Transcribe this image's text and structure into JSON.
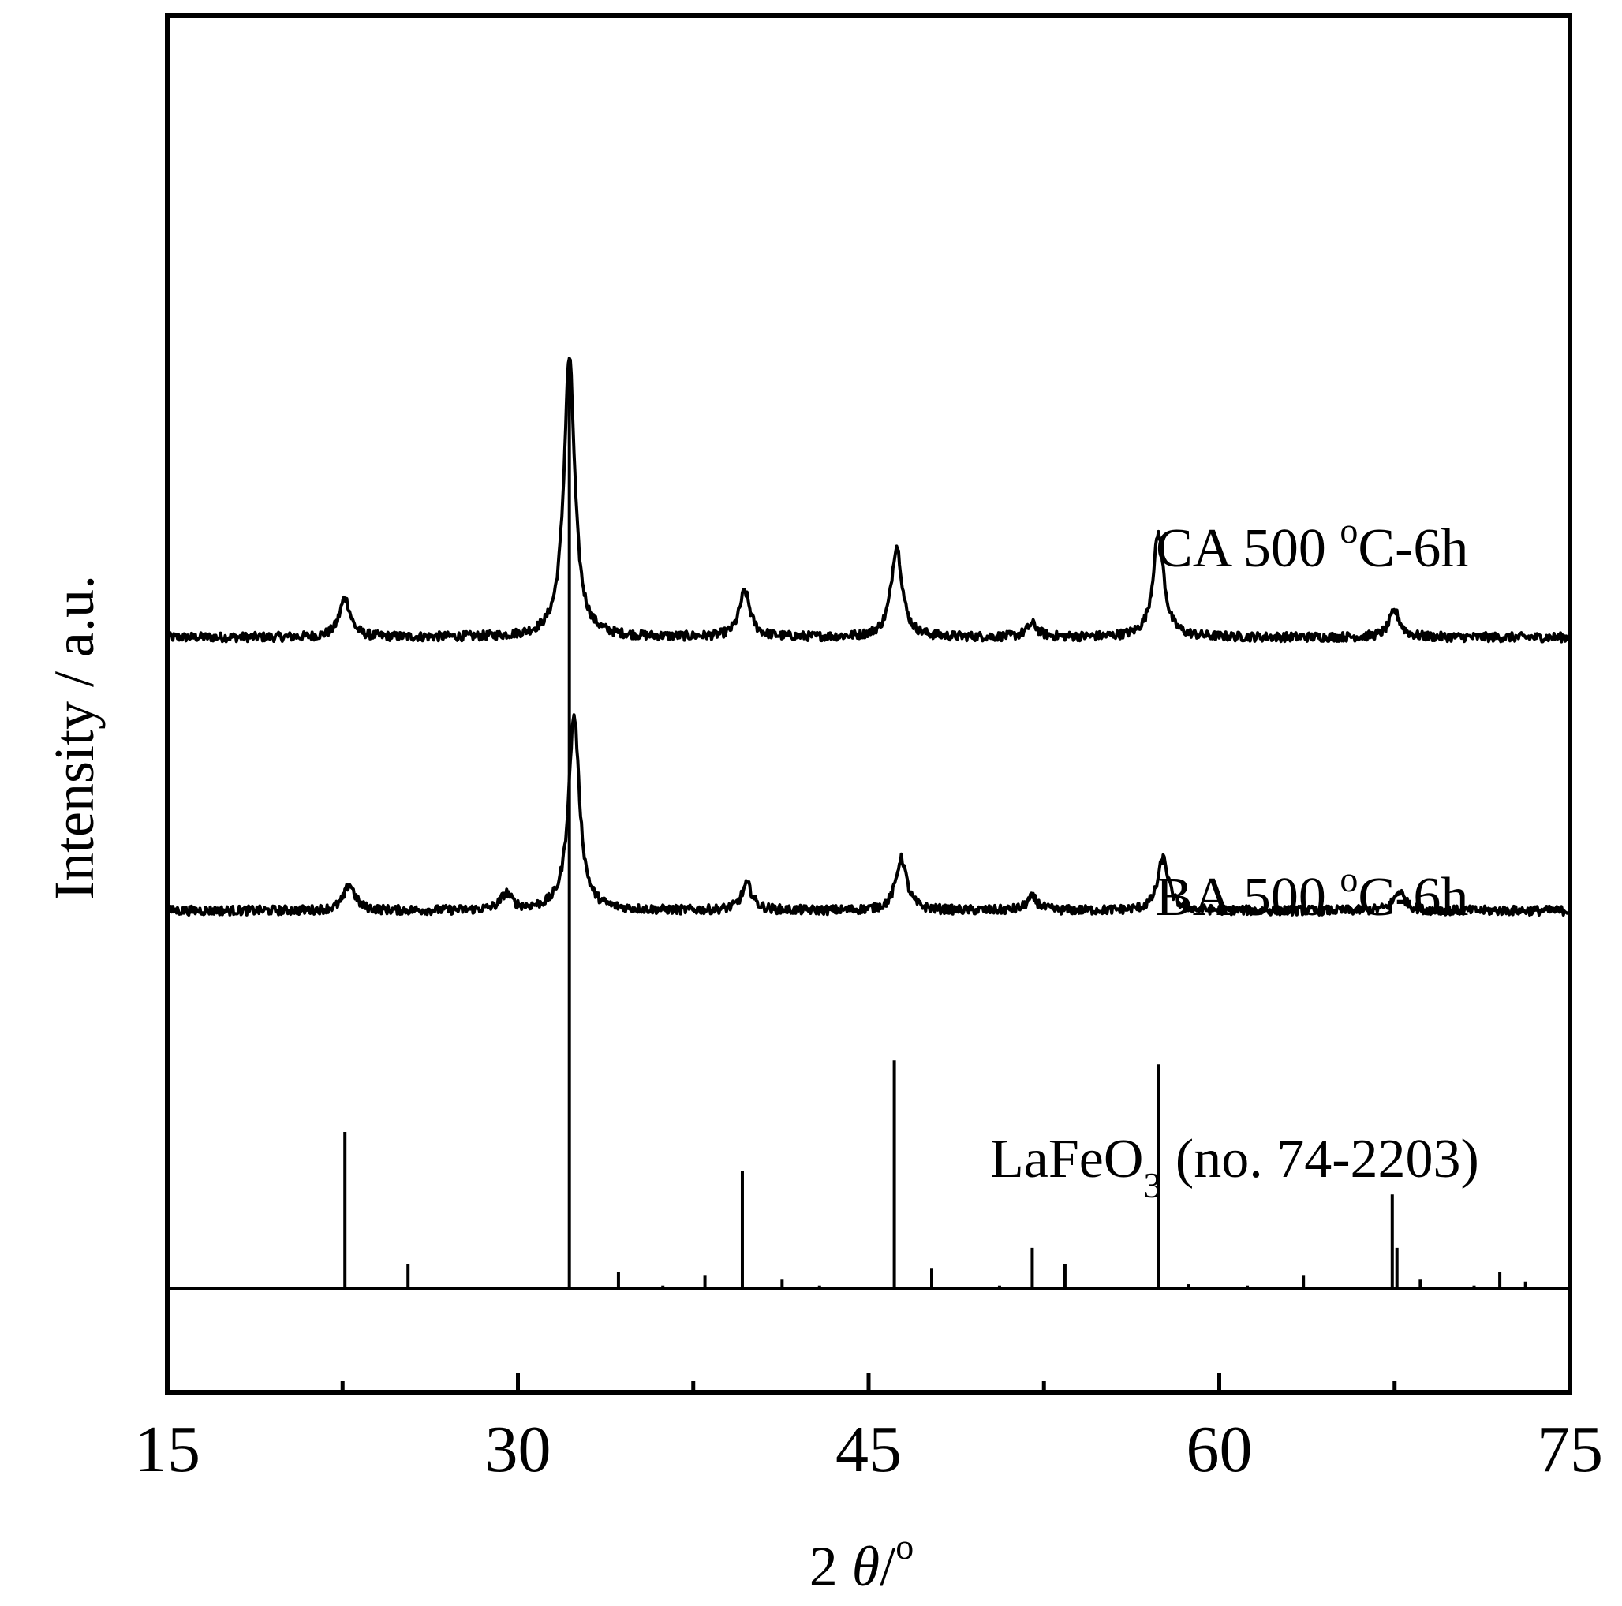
{
  "chart_data": {
    "type": "line",
    "xlabel": {
      "prefix": "2 ",
      "symbol": "θ",
      "suffix": "/",
      "sup": "o"
    },
    "ylabel": "Intensity / a.u.",
    "xlim": [
      15,
      75
    ],
    "xticks": [
      "15",
      "30",
      "45",
      "60",
      "75"
    ],
    "grid": false,
    "series": [
      {
        "name": {
          "main": "CA 500 ",
          "sup": "o",
          "rest": "C-6h"
        },
        "baseline": 1.0,
        "peaks": [
          {
            "x": 22.6,
            "h": 0.06
          },
          {
            "x": 32.2,
            "h": 0.43
          },
          {
            "x": 39.7,
            "h": 0.07
          },
          {
            "x": 46.2,
            "h": 0.14
          },
          {
            "x": 52.0,
            "h": 0.02
          },
          {
            "x": 57.4,
            "h": 0.16
          },
          {
            "x": 67.5,
            "h": 0.04
          }
        ]
      },
      {
        "name": {
          "main": "BA 500 ",
          "sup": "o",
          "rest": "C-6h"
        },
        "baseline": 0.58,
        "peaks": [
          {
            "x": 22.8,
            "h": 0.04
          },
          {
            "x": 29.5,
            "h": 0.025
          },
          {
            "x": 32.4,
            "h": 0.3
          },
          {
            "x": 39.8,
            "h": 0.04
          },
          {
            "x": 46.4,
            "h": 0.08
          },
          {
            "x": 52.0,
            "h": 0.02
          },
          {
            "x": 57.6,
            "h": 0.08
          },
          {
            "x": 67.7,
            "h": 0.03
          }
        ]
      }
    ],
    "reference": {
      "label": {
        "main": "LaFeO",
        "sub": "3",
        "rest": " (no. 74-2203)"
      },
      "baseline": 0.0,
      "sticks": [
        {
          "x": 22.6,
          "h": 0.24
        },
        {
          "x": 25.3,
          "h": 0.037
        },
        {
          "x": 32.2,
          "h": 1.42
        },
        {
          "x": 34.3,
          "h": 0.025
        },
        {
          "x": 36.2,
          "h": 0.004
        },
        {
          "x": 38.0,
          "h": 0.019
        },
        {
          "x": 39.6,
          "h": 0.18
        },
        {
          "x": 41.3,
          "h": 0.013
        },
        {
          "x": 42.9,
          "h": 0.004
        },
        {
          "x": 46.1,
          "h": 0.35
        },
        {
          "x": 47.7,
          "h": 0.03
        },
        {
          "x": 50.6,
          "h": 0.004
        },
        {
          "x": 52.0,
          "h": 0.062
        },
        {
          "x": 53.4,
          "h": 0.037
        },
        {
          "x": 57.4,
          "h": 0.344
        },
        {
          "x": 58.7,
          "h": 0.006
        },
        {
          "x": 61.2,
          "h": 0.004
        },
        {
          "x": 63.6,
          "h": 0.019
        },
        {
          "x": 67.4,
          "h": 0.144
        },
        {
          "x": 67.6,
          "h": 0.062
        },
        {
          "x": 68.6,
          "h": 0.013
        },
        {
          "x": 70.9,
          "h": 0.004
        },
        {
          "x": 72.0,
          "h": 0.025
        },
        {
          "x": 73.1,
          "h": 0.01
        }
      ]
    }
  }
}
